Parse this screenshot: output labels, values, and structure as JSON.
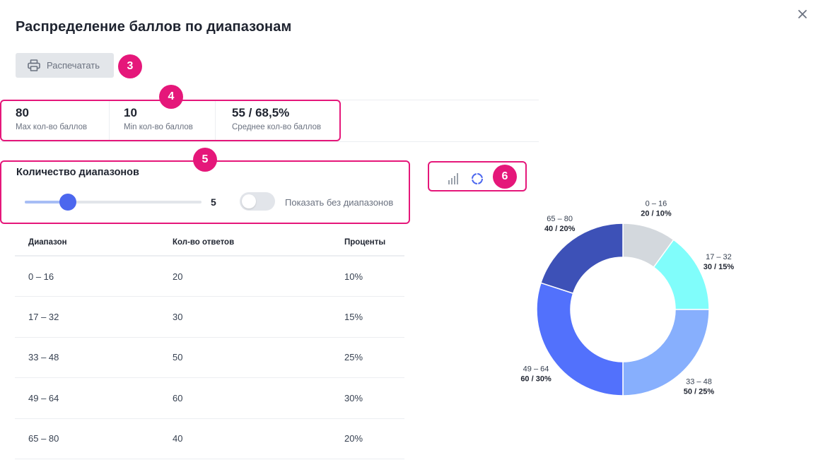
{
  "header": {
    "title": "Распределение баллов по диапазонам",
    "close_icon": "close-icon"
  },
  "toolbar": {
    "print_label": "Распечатать",
    "print_icon": "printer-icon"
  },
  "badges": {
    "b3": "3",
    "b4": "4",
    "b5": "5",
    "b6": "6"
  },
  "stats": [
    {
      "value": "80",
      "label": "Max кол-во баллов"
    },
    {
      "value": "10",
      "label": "Min кол-во баллов"
    },
    {
      "value": "55 / 68,5%",
      "label": "Среднее кол-во баллов"
    }
  ],
  "ranges": {
    "title": "Количество диапазонов",
    "slider_value": "5",
    "slider_fraction": 0.22,
    "toggle_label": "Показать без диапазонов",
    "toggle_on": false
  },
  "view_switch": {
    "bar_icon": "bar-chart-icon",
    "donut_icon": "donut-chart-icon",
    "active": "donut"
  },
  "table": {
    "headers": [
      "Диапазон",
      "Кол-во ответов",
      "Проценты"
    ],
    "rows": [
      [
        "0 – 16",
        "20",
        "10%"
      ],
      [
        "17 – 32",
        "30",
        "15%"
      ],
      [
        "33 – 48",
        "50",
        "25%"
      ],
      [
        "49 – 64",
        "60",
        "30%"
      ],
      [
        "65 – 80",
        "40",
        "20%"
      ]
    ]
  },
  "chart_data": {
    "type": "pie",
    "variant": "donut",
    "categories": [
      "0 – 16",
      "17 – 32",
      "33 – 48",
      "49 – 64",
      "65 – 80"
    ],
    "values": [
      20,
      30,
      50,
      60,
      40
    ],
    "percents": [
      10,
      15,
      25,
      30,
      20
    ],
    "value_labels": [
      "20 / 10%",
      "30 / 15%",
      "50 / 25%",
      "60 / 30%",
      "40 / 20%"
    ],
    "colors": [
      "#d3d8dd",
      "#80fdfb",
      "#87affd",
      "#5271fc",
      "#3d51b7"
    ]
  }
}
